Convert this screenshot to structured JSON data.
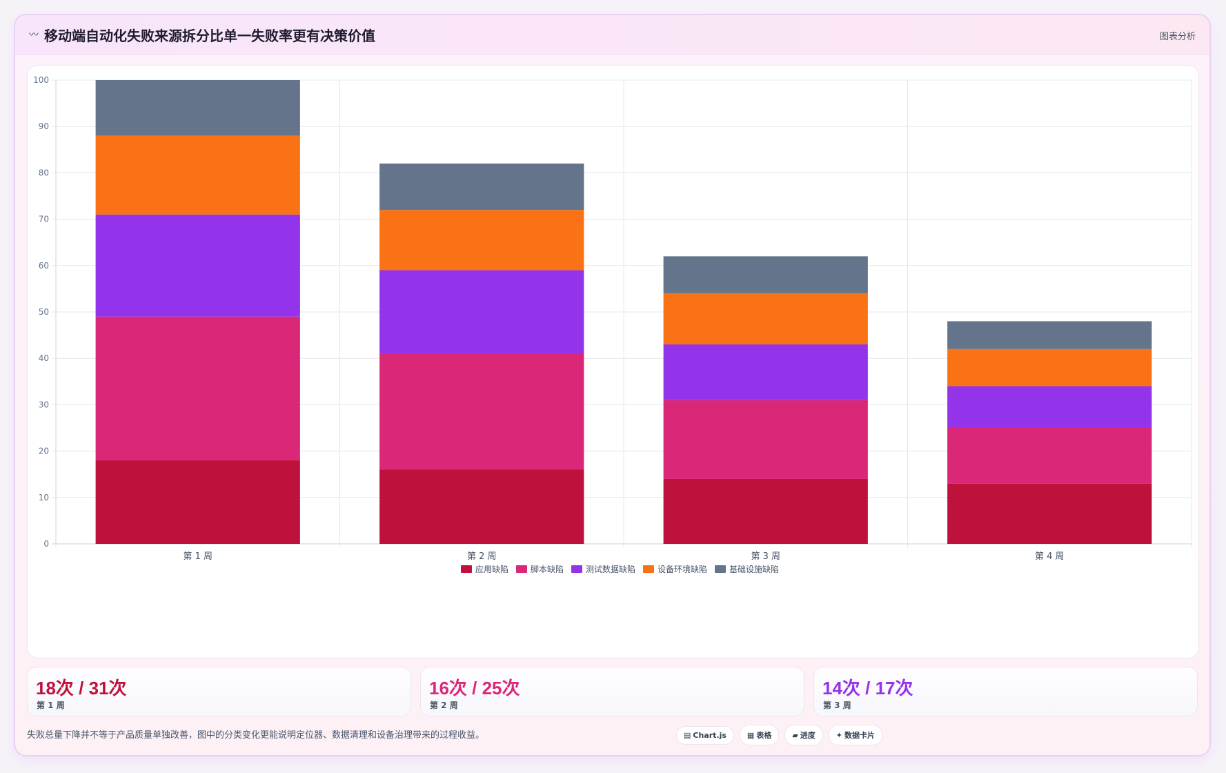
{
  "header": {
    "title": "移动端自动化失败来源拆分比单一失败率更有决策价值",
    "title_icon": "〰",
    "tag": "图表分析"
  },
  "chart_data": {
    "type": "bar",
    "stacked": true,
    "categories": [
      "第 1 周",
      "第 2 周",
      "第 3 周",
      "第 4 周"
    ],
    "series": [
      {
        "name": "应用缺陷",
        "color": "#be123c",
        "values": [
          18,
          16,
          14,
          13
        ]
      },
      {
        "name": "脚本缺陷",
        "color": "#db2777",
        "values": [
          31,
          25,
          17,
          12
        ]
      },
      {
        "name": "测试数据缺陷",
        "color": "#9333ea",
        "values": [
          22,
          18,
          12,
          9
        ]
      },
      {
        "name": "设备环境缺陷",
        "color": "#f97316",
        "values": [
          17,
          13,
          11,
          8
        ]
      },
      {
        "name": "基础设施缺陷",
        "color": "#64748b",
        "values": [
          12,
          10,
          8,
          6
        ]
      }
    ],
    "ylim": [
      0,
      100
    ],
    "yticks": [
      0,
      10,
      20,
      30,
      40,
      50,
      60,
      70,
      80,
      90,
      100
    ],
    "grid": true,
    "legend": "bottom"
  },
  "stats": [
    {
      "value": "18次 / 31次",
      "label": "第 1 周",
      "color": "#be123c"
    },
    {
      "value": "16次 / 25次",
      "label": "第 2 周",
      "color": "#db2777"
    },
    {
      "value": "14次 / 17次",
      "label": "第 3 周",
      "color": "#9333ea"
    }
  ],
  "footnote": "失败总量下降并不等于产品质量单独改善，图中的分类变化更能说明定位器、数据清理和设备治理带来的过程收益。",
  "chips": [
    {
      "icon": "▤",
      "label": "Chart.js"
    },
    {
      "icon": "▦",
      "label": "表格"
    },
    {
      "icon": "▰",
      "label": "进度"
    },
    {
      "icon": "✦",
      "label": "数据卡片"
    }
  ]
}
